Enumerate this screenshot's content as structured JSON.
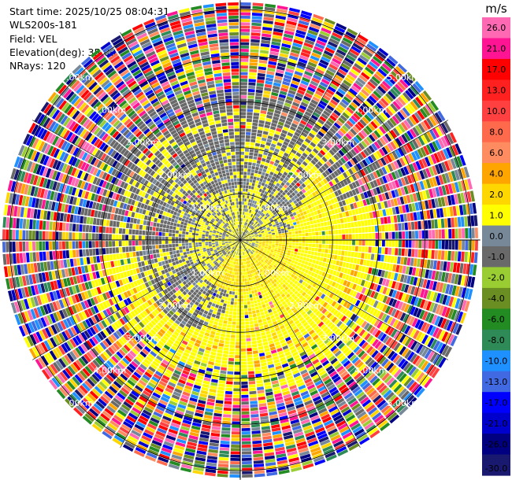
{
  "info": {
    "start_time": "Start time: 2025/10/25 08:04:31",
    "instrument": "WLS200s-181",
    "field": "Field: VEL",
    "elevation": "Elevation(deg): 35.00",
    "nrays": "NRays: 120"
  },
  "chart_data": {
    "type": "heatmap",
    "projection": "polar-ppi",
    "field": "VEL",
    "n_rays": 120,
    "range_rings_km": [
      1.0,
      2.0,
      3.0,
      4.0,
      5.0
    ],
    "ring_labels": [
      "1.00km",
      "2.00km",
      "3.00km",
      "4.00km",
      "5.00km"
    ],
    "unit": "m/s",
    "colorbar": {
      "labels": [
        "26.0",
        "21.0",
        "17.0",
        "13.0",
        "10.0",
        "8.0",
        "6.0",
        "4.0",
        "2.0",
        "1.0",
        "0.0",
        "-1.0",
        "-2.0",
        "-4.0",
        "-6.0",
        "-8.0",
        "-10.0",
        "-13.0",
        "-17.0",
        "-21.0",
        "-26.0",
        "-30.0"
      ],
      "colors": [
        "#ff69b4",
        "#ff1493",
        "#ff0000",
        "#ff2020",
        "#ff4040",
        "#ff6a4d",
        "#ff8c60",
        "#ffa500",
        "#ffd700",
        "#ffff00",
        "#778899",
        "#696969",
        "#9acd32",
        "#6b8e23",
        "#228b22",
        "#2e8b57",
        "#1e90ff",
        "#4169e1",
        "#0000ff",
        "#0000cd",
        "#000080",
        "#191970"
      ]
    }
  }
}
